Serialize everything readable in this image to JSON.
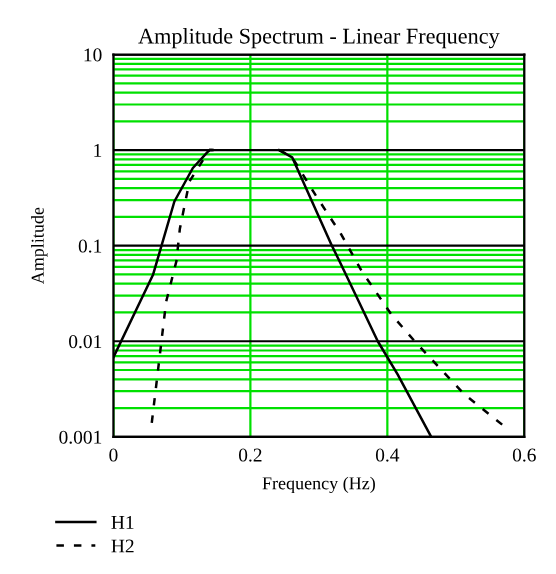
{
  "chart_data": {
    "type": "line",
    "title": "Amplitude Spectrum - Linear Frequency",
    "xlabel": "Frequency (Hz)",
    "ylabel": "Amplitude",
    "log": "y",
    "xlim": [
      0,
      0.6
    ],
    "ylim": [
      0.001,
      10
    ],
    "xticks": [
      0,
      0.2,
      0.4,
      0.6
    ],
    "yticks": [
      0.001,
      0.01,
      0.1,
      1,
      10
    ],
    "grid": true,
    "legend": "bottom left",
    "marker": "none",
    "series": [
      {
        "name": "H1",
        "color": "#000000",
        "line_style": "solid",
        "x": [
          0,
          0.058,
          0.089,
          0.116,
          0.14,
          0.145,
          0.2,
          0.242,
          0.261,
          0.29,
          0.319,
          0.33,
          0.386,
          0.415,
          0.464
        ],
        "values": [
          0.0068,
          0.05,
          0.29,
          0.65,
          1,
          1,
          null,
          1,
          0.84,
          0.29,
          0.1,
          0.069,
          0.01,
          0.0045,
          0.001
        ]
      },
      {
        "name": "H2",
        "color": "#000000",
        "line_style": "dashed",
        "x": [
          0.056,
          0.077,
          0.092,
          0.097,
          0.111,
          0.14,
          0.145,
          0.2,
          0.242,
          0.261,
          0.295,
          0.333,
          0.362,
          0.406,
          0.44,
          0.512,
          0.57
        ],
        "values": [
          0.0014,
          0.026,
          0.069,
          0.15,
          0.47,
          1,
          1,
          null,
          1,
          0.84,
          0.34,
          0.13,
          0.055,
          0.019,
          0.01,
          0.0028,
          0.0013
        ]
      }
    ]
  }
}
